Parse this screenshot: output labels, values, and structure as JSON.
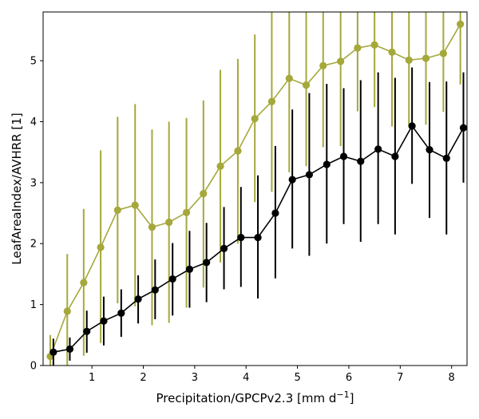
{
  "chart_data": {
    "type": "line",
    "title": "",
    "xlabel": "Precipitation/GPCPv2.3 [mm d",
    "xlabel_unit_sup": "−1",
    "xlabel_suffix": "]",
    "ylabel": "LeafAreaIndex/AVHRR [1]",
    "xlim": [
      0.05,
      8.3
    ],
    "ylim": [
      0,
      5.8
    ],
    "xticks": [
      1,
      2,
      3,
      4,
      5,
      6,
      7,
      8
    ],
    "yticks": [
      0,
      1,
      2,
      3,
      4,
      5
    ],
    "grid": false,
    "legend": "none",
    "series": [
      {
        "color": "#a5a83a",
        "x": [
          0.19,
          0.52,
          0.84,
          1.17,
          1.5,
          1.84,
          2.17,
          2.5,
          2.84,
          3.17,
          3.5,
          3.84,
          4.17,
          4.5,
          4.84,
          5.17,
          5.5,
          5.84,
          6.17,
          6.5,
          6.84,
          7.17,
          7.5,
          7.84,
          8.17
        ],
        "y": [
          0.15,
          0.89,
          1.36,
          1.94,
          2.55,
          2.63,
          2.27,
          2.35,
          2.51,
          2.82,
          3.27,
          3.52,
          4.05,
          4.33,
          4.71,
          4.6,
          4.92,
          4.99,
          5.21,
          5.26,
          5.14,
          5.01,
          5.04,
          5.12,
          5.6
        ],
        "yerr_low": [
          0.0,
          0.0,
          0.16,
          0.37,
          1.02,
          0.97,
          0.66,
          0.7,
          0.95,
          1.28,
          1.69,
          2.0,
          2.68,
          2.85,
          3.17,
          3.27,
          3.58,
          3.6,
          4.17,
          4.24,
          3.92,
          3.92,
          3.95,
          4.16,
          4.61
        ],
        "yerr_high": [
          0.5,
          1.83,
          2.57,
          3.53,
          4.08,
          4.29,
          3.87,
          4.0,
          4.06,
          4.35,
          4.85,
          5.03,
          5.43,
          5.8,
          5.8,
          5.8,
          5.8,
          5.8,
          5.8,
          5.8,
          5.8,
          5.8,
          5.8,
          5.8,
          5.8
        ]
      },
      {
        "color": "#000000",
        "x": [
          0.25,
          0.57,
          0.9,
          1.23,
          1.57,
          1.9,
          2.23,
          2.57,
          2.9,
          3.23,
          3.57,
          3.9,
          4.23,
          4.57,
          4.9,
          5.23,
          5.57,
          5.9,
          6.23,
          6.57,
          6.9,
          7.23,
          7.57,
          7.9,
          8.23
        ],
        "y": [
          0.22,
          0.27,
          0.56,
          0.73,
          0.86,
          1.09,
          1.24,
          1.42,
          1.58,
          1.69,
          1.92,
          2.1,
          2.1,
          2.5,
          3.05,
          3.13,
          3.3,
          3.43,
          3.35,
          3.55,
          3.43,
          3.93,
          3.54,
          3.4,
          3.9
        ],
        "yerr_low": [
          0.0,
          0.08,
          0.21,
          0.33,
          0.47,
          0.69,
          0.76,
          0.82,
          0.95,
          1.04,
          1.25,
          1.29,
          1.1,
          1.43,
          1.92,
          1.8,
          2.0,
          2.32,
          2.03,
          2.32,
          2.15,
          2.98,
          2.42,
          2.15,
          3.0
        ],
        "yerr_high": [
          0.44,
          0.46,
          0.9,
          1.13,
          1.25,
          1.48,
          1.74,
          2.01,
          2.21,
          2.34,
          2.6,
          2.93,
          3.12,
          3.6,
          4.2,
          4.47,
          4.62,
          4.55,
          4.68,
          4.81,
          4.72,
          4.89,
          4.65,
          4.66,
          4.81
        ]
      }
    ]
  }
}
